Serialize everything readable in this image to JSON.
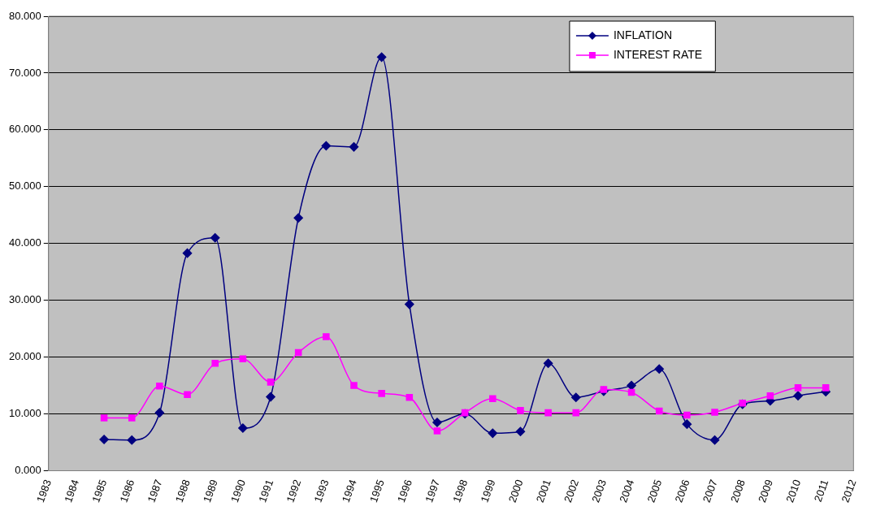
{
  "chart_data": {
    "type": "line",
    "x": [
      1985,
      1986,
      1987,
      1988,
      1989,
      1990,
      1991,
      1992,
      1993,
      1994,
      1995,
      1996,
      1997,
      1998,
      1999,
      2000,
      2001,
      2002,
      2003,
      2004,
      2005,
      2006,
      2007,
      2008,
      2009,
      2010,
      2011
    ],
    "series": [
      {
        "name": "INFLATION",
        "color": "#000080",
        "marker": "diamond",
        "values": [
          5.5,
          5.4,
          10.2,
          38.3,
          41.0,
          7.5,
          13.0,
          44.5,
          57.2,
          57.0,
          72.8,
          29.3,
          8.5,
          10.0,
          6.6,
          6.9,
          18.9,
          12.9,
          14.0,
          15.0,
          17.9,
          8.2,
          5.4,
          11.7,
          12.3,
          13.2,
          13.9
        ]
      },
      {
        "name": "INTEREST RATE",
        "color": "#ff00ff",
        "marker": "square",
        "values": [
          9.3,
          9.3,
          14.9,
          13.4,
          18.9,
          19.7,
          15.6,
          20.8,
          23.6,
          15.0,
          13.6,
          12.9,
          7.0,
          10.2,
          12.7,
          10.6,
          10.2,
          10.2,
          14.3,
          13.8,
          10.5,
          9.8,
          10.3,
          11.9,
          13.2,
          14.6,
          14.6
        ]
      }
    ],
    "xlim": [
      1983,
      2012
    ],
    "xticks": [
      1983,
      1984,
      1985,
      1986,
      1987,
      1988,
      1989,
      1990,
      1991,
      1992,
      1993,
      1994,
      1995,
      1996,
      1997,
      1998,
      1999,
      2000,
      2001,
      2002,
      2003,
      2004,
      2005,
      2006,
      2007,
      2008,
      2009,
      2010,
      2011,
      2012
    ],
    "ylim": [
      0,
      80
    ],
    "yticks": [
      {
        "value": 0,
        "label": "0.000"
      },
      {
        "value": 10,
        "label": "10.000"
      },
      {
        "value": 20,
        "label": "20.000"
      },
      {
        "value": 30,
        "label": "30.000"
      },
      {
        "value": 40,
        "label": "40.000"
      },
      {
        "value": 50,
        "label": "50.000"
      },
      {
        "value": 60,
        "label": "60.000"
      },
      {
        "value": 70,
        "label": "70.000"
      },
      {
        "value": 80,
        "label": "80.000"
      }
    ],
    "grid": "y",
    "legend": "top right"
  }
}
